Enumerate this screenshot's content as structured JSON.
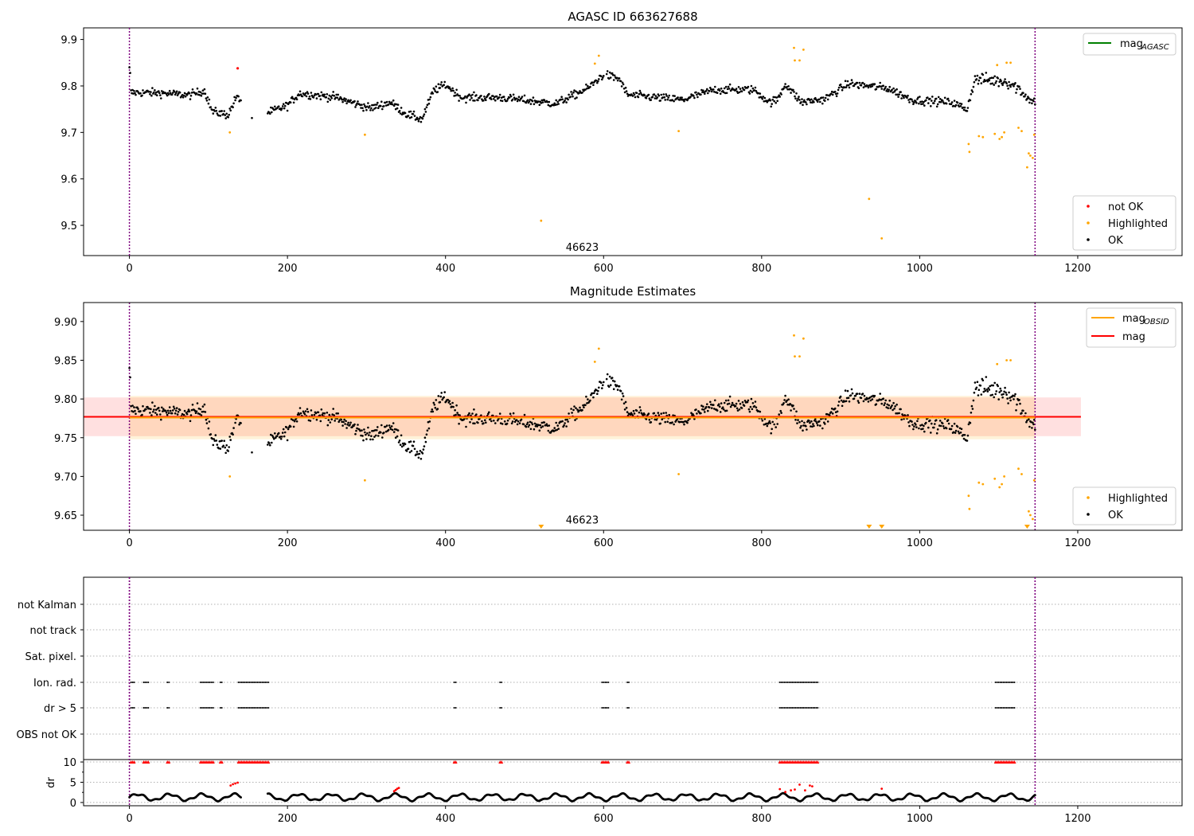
{
  "chart_data": [
    {
      "type": "scatter",
      "title": "AGASC ID 663627688",
      "xlim": [
        -58,
        1332
      ],
      "ylim": [
        9.435,
        9.925
      ],
      "xticks": [
        0,
        200,
        400,
        600,
        800,
        1000,
        1200
      ],
      "yticks": [
        9.5,
        9.6,
        9.7,
        9.8,
        9.9
      ],
      "ytick_decimals": 1,
      "vlines": [
        0,
        1146
      ],
      "annotation": {
        "text": "46623",
        "x": 573,
        "y": 9.445
      },
      "line_legend": [
        {
          "label": "mag",
          "sub": "AGASC",
          "color": "#008000"
        }
      ],
      "series": [
        {
          "name": "not OK",
          "color": "#ff0000",
          "points": [
            [
              137,
              9.838
            ]
          ]
        },
        {
          "name": "Highlighted",
          "color": "#ffa500",
          "points": [
            [
              127,
              9.7
            ],
            [
              298,
              9.695
            ],
            [
              521,
              9.51
            ],
            [
              589,
              9.848
            ],
            [
              594,
              9.865
            ],
            [
              695,
              9.703
            ],
            [
              841,
              9.882
            ],
            [
              842,
              9.855
            ],
            [
              848,
              9.855
            ],
            [
              853,
              9.878
            ],
            [
              936,
              9.557
            ],
            [
              952,
              9.472
            ],
            [
              1062,
              9.675
            ],
            [
              1063,
              9.658
            ],
            [
              1075,
              9.692
            ],
            [
              1080,
              9.69
            ],
            [
              1095,
              9.697
            ],
            [
              1098,
              9.845
            ],
            [
              1101,
              9.686
            ],
            [
              1104,
              9.69
            ],
            [
              1107,
              9.7
            ],
            [
              1110,
              9.85
            ],
            [
              1115,
              9.85
            ],
            [
              1125,
              9.71
            ],
            [
              1129,
              9.703
            ],
            [
              1136,
              9.625
            ],
            [
              1138,
              9.655
            ],
            [
              1140,
              9.65
            ],
            [
              1143,
              9.645
            ],
            [
              1145,
              9.695
            ]
          ]
        },
        {
          "name": "OK",
          "color": "#000000"
        }
      ],
      "legend": [
        "not OK",
        "Highlighted",
        "OK"
      ]
    },
    {
      "type": "scatter",
      "title": "Magnitude Estimates",
      "xlim": [
        -58,
        1332
      ],
      "ylim": [
        9.6305,
        9.9245
      ],
      "xticks": [
        0,
        200,
        400,
        600,
        800,
        1000,
        1200
      ],
      "yticks": [
        9.65,
        9.7,
        9.75,
        9.8,
        9.85,
        9.9
      ],
      "ytick_decimals": 2,
      "vlines": [
        0,
        1146
      ],
      "annotation": {
        "text": "46623",
        "x": 573,
        "y": 9.639
      },
      "mag": {
        "value": 9.777,
        "band": [
          9.752,
          9.802
        ],
        "x": [
          -58,
          1204
        ],
        "color": "#ff0000"
      },
      "mag_obsid": {
        "value": 9.776,
        "band": [
          9.748,
          9.804
        ],
        "x": [
          0,
          1146
        ],
        "color": "#ffa500"
      },
      "offscale_x": [
        521,
        936,
        952,
        1136
      ],
      "line_legend": [
        {
          "label": "mag",
          "sub": "OBSID",
          "color": "#ffa500"
        },
        {
          "label": "mag",
          "sub": "",
          "color": "#ff0000"
        }
      ],
      "legend": [
        "Highlighted",
        "OK"
      ]
    },
    {
      "type": "scatter",
      "categories": [
        "not Kalman",
        "not track",
        "Sat. pixel.",
        "Ion. rad.",
        "dr > 5",
        "OBS not OK"
      ],
      "xlim": [
        -58,
        1332
      ],
      "xticks": [
        0,
        200,
        400,
        600,
        800,
        1000,
        1200
      ],
      "vlines": [
        0,
        1146
      ],
      "flag_ranges": [
        [
          2,
          7
        ],
        [
          18,
          25
        ],
        [
          48,
          50
        ],
        [
          90,
          106
        ],
        [
          115,
          117
        ],
        [
          138,
          176
        ],
        [
          411,
          413
        ],
        [
          469,
          471
        ],
        [
          598,
          606
        ],
        [
          630,
          632
        ],
        [
          823,
          871
        ],
        [
          1096,
          1120
        ]
      ],
      "dr": {
        "ylabel": "dr",
        "ylim": [
          -0.8,
          10.6
        ],
        "yticks": [
          0,
          5,
          10
        ],
        "minor_yticks": [
          2.5,
          7.5
        ]
      }
    }
  ]
}
